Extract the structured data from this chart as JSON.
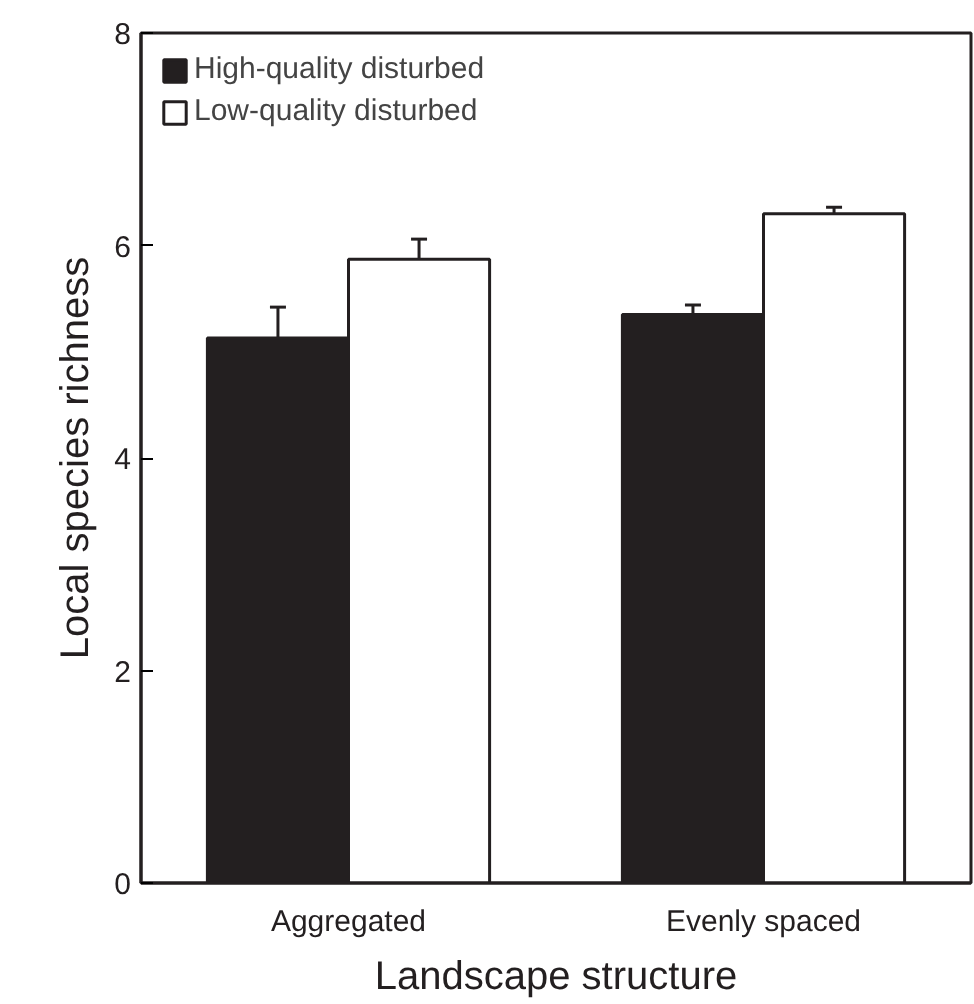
{
  "chart_data": {
    "type": "bar",
    "xlabel": "Landscape structure",
    "ylabel": "Local species richness",
    "categories": [
      "Aggregated",
      "Evenly spaced"
    ],
    "series": [
      {
        "name": "High-quality disturbed",
        "color": "#231f20",
        "values": [
          5.13,
          5.35
        ],
        "errors": [
          0.29,
          0.09
        ]
      },
      {
        "name": "Low-quality disturbed",
        "color": "#ffffff",
        "values": [
          5.87,
          6.3
        ],
        "errors": [
          0.19,
          0.06
        ]
      }
    ],
    "ylim": [
      0,
      8
    ],
    "yticks": [
      0,
      2,
      4,
      6,
      8
    ],
    "grid": false,
    "legend": "top left"
  }
}
